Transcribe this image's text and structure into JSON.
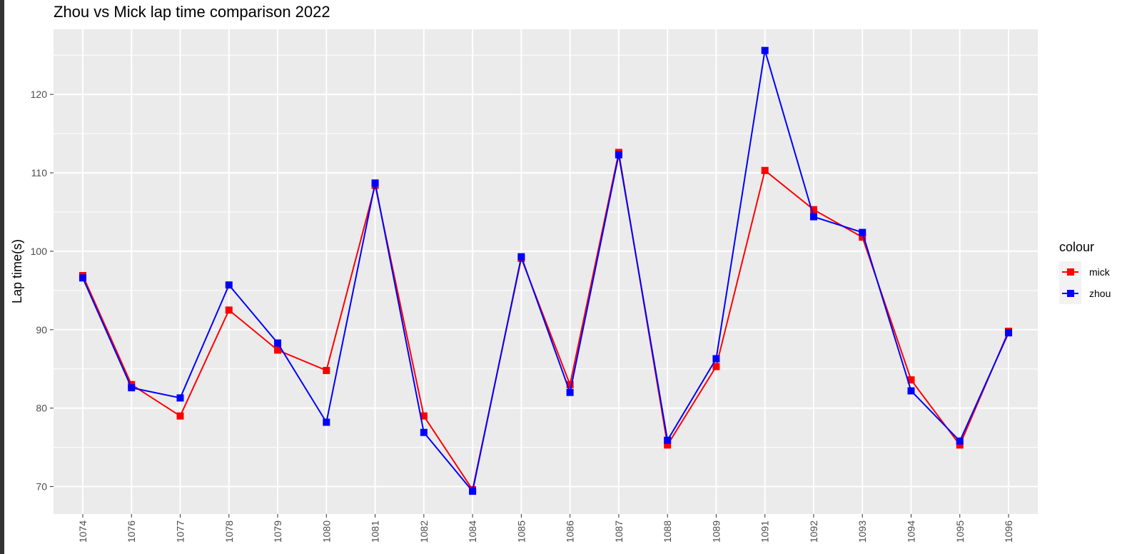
{
  "chart_data": {
    "type": "line",
    "title": "Zhou vs Mick lap time comparison 2022",
    "xlabel": "",
    "ylabel": "Lap time(s)",
    "x": [
      "1074",
      "1076",
      "1077",
      "1078",
      "1079",
      "1080",
      "1081",
      "1082",
      "1084",
      "1085",
      "1086",
      "1087",
      "1088",
      "1089",
      "1091",
      "1092",
      "1093",
      "1094",
      "1095",
      "1096"
    ],
    "yticks": [
      70,
      80,
      90,
      100,
      110,
      120
    ],
    "ylim": [
      66.5,
      128.3
    ],
    "grid": true,
    "legend": {
      "title": "colour",
      "position": "right"
    },
    "series": [
      {
        "name": "mick",
        "color": "#ff0000",
        "values": [
          96.9,
          83.0,
          79.0,
          92.5,
          87.4,
          84.8,
          108.4,
          79.0,
          69.6,
          99.1,
          83.0,
          112.6,
          75.3,
          85.3,
          110.3,
          105.3,
          101.8,
          83.6,
          75.3,
          89.8
        ]
      },
      {
        "name": "zhou",
        "color": "#0000ff",
        "values": [
          96.6,
          82.6,
          81.3,
          95.7,
          88.3,
          78.2,
          108.7,
          76.9,
          69.4,
          99.3,
          82.0,
          112.3,
          75.9,
          86.3,
          125.6,
          104.4,
          102.4,
          82.2,
          75.8,
          89.6
        ]
      }
    ]
  }
}
